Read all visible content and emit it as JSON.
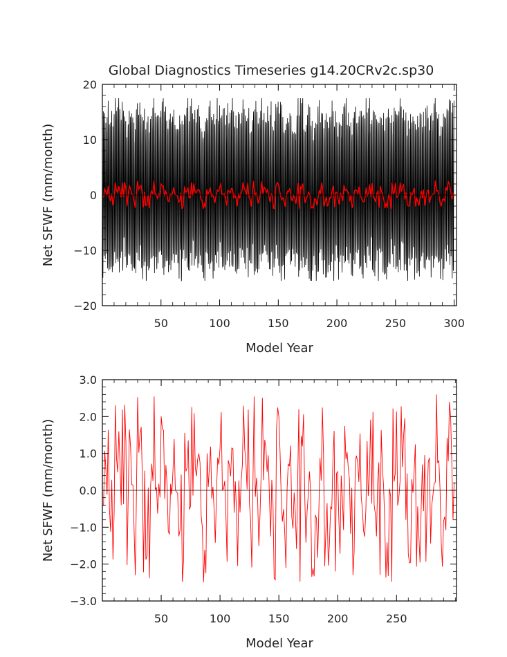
{
  "title": "Global Diagnostics Timeseries g14.20CRv2c.sp30",
  "colors": {
    "monthly": "#000000",
    "annual": "#ff0000",
    "axes": "#000000",
    "zero_line": "#000000"
  },
  "chart_data": [
    {
      "type": "line",
      "xlabel": "Model Year",
      "ylabel": "Net SFWF (mm/month)",
      "xlim": [
        0,
        302
      ],
      "ylim": [
        -20,
        20
      ],
      "x_ticks": [
        50,
        100,
        150,
        200,
        250,
        300
      ],
      "x_tick_labels": [
        "50",
        "100",
        "150",
        "200",
        "250",
        "300"
      ],
      "y_ticks": [
        -20,
        -10,
        0,
        10,
        20
      ],
      "y_tick_labels": [
        "−20",
        "−10",
        "0",
        "10",
        "20"
      ],
      "zero_line": true,
      "grid": false,
      "series": [
        {
          "kind": "monthly",
          "x_start": 0.0417,
          "x_step": 0.0833,
          "amplitude_range": [
            -15.5,
            17.5
          ],
          "annual_range": [
            -2.5,
            2.6
          ],
          "n_years": 300
        },
        {
          "kind": "annual",
          "x_start": 1,
          "x_step": 1,
          "range": [
            -2.5,
            2.6
          ],
          "n_years": 300
        }
      ]
    },
    {
      "type": "line",
      "xlabel": "Model Year",
      "ylabel": "Net SFWF (mm/month)",
      "xlim": [
        0,
        301
      ],
      "ylim": [
        -3.0,
        3.0
      ],
      "x_ticks": [
        50,
        100,
        150,
        200,
        250
      ],
      "x_tick_labels": [
        "50",
        "100",
        "150",
        "200",
        "250"
      ],
      "y_ticks": [
        -3,
        -2,
        -1,
        0,
        1,
        2,
        3
      ],
      "y_tick_labels": [
        "−3.0",
        "−2.0",
        "−1.0",
        "0.0",
        "1.0",
        "2.0",
        "3.0"
      ],
      "zero_line": true,
      "grid": false,
      "series": [
        {
          "kind": "annual",
          "x_start": 1,
          "x_step": 1,
          "range": [
            -2.5,
            2.6
          ],
          "n_years": 299
        }
      ]
    }
  ]
}
